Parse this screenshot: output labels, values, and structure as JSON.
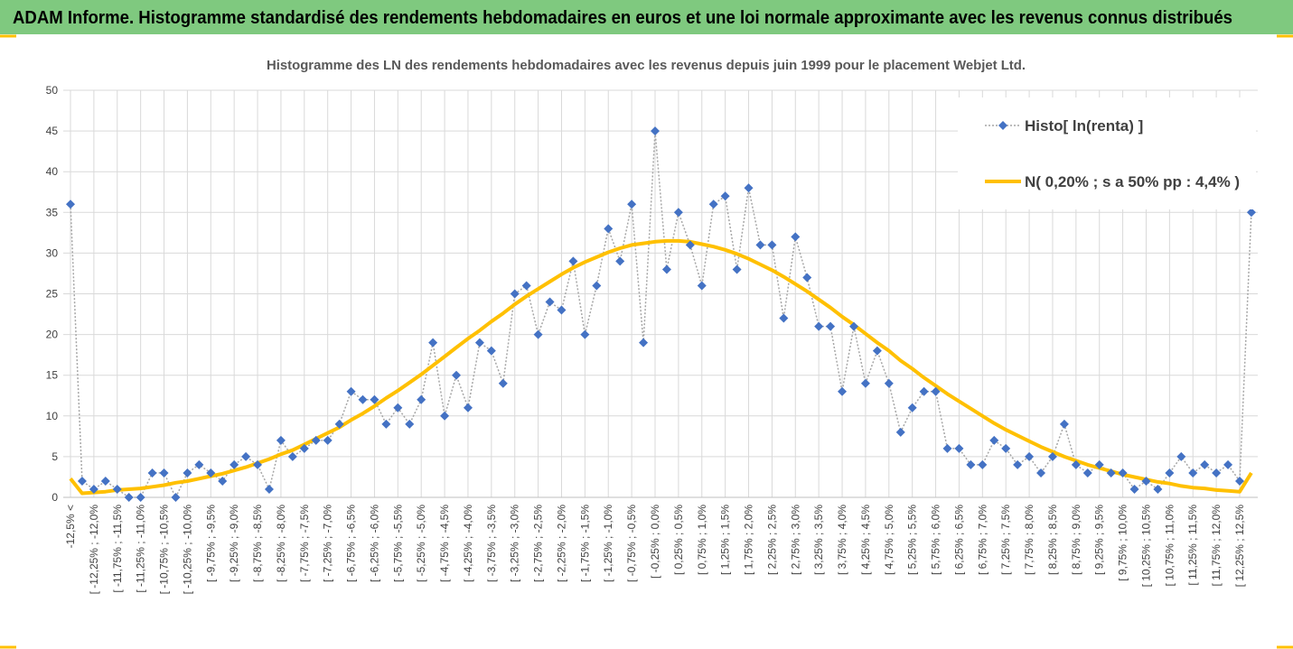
{
  "header": {
    "title": "ADAM Informe. Histogramme standardisé des rendements hebdomadaires en euros et une loi normale approximante avec les revenus connus distribués"
  },
  "chart_data": {
    "type": "line",
    "title": "Histogramme  des LN des rendements hebdomadaires avec les revenus depuis juin 1999 pour le placement Webjet Ltd.",
    "categories": [
      "-12,5% <",
      null,
      "[ -12,25% ; -12,0%",
      null,
      "[ -11,75% ; -11,5%",
      null,
      "[ -11,25% ; -11,0%",
      null,
      "[ -10,75% ; -10,5%",
      null,
      "[ -10,25% ; -10,0%",
      null,
      "[ -9,75% ; -9,5%",
      null,
      "[ -9,25% ; -9,0%",
      null,
      "[ -8,75% ; -8,5%",
      null,
      "[ -8,25% ; -8,0%",
      null,
      "[ -7,75% ; -7,5%",
      null,
      "[ -7,25% ; -7,0%",
      null,
      "[ -6,75% ; -6,5%",
      null,
      "[ -6,25% ; -6,0%",
      null,
      "[ -5,75% ; -5,5%",
      null,
      "[ -5,25% ; -5,0%",
      null,
      "[ -4,75% ; -4,5%",
      null,
      "[ -4,25% ; -4,0%",
      null,
      "[ -3,75% ; -3,5%",
      null,
      "[ -3,25% ; -3,0%",
      null,
      "[ -2,75% ; -2,5%",
      null,
      "[ -2,25% ; -2,0%",
      null,
      "[ -1,75% ; -1,5%",
      null,
      "[ -1,25% ; -1,0%",
      null,
      "[ -0,75% ; -0,5%",
      null,
      "[ -0,25% ; 0,0%",
      null,
      "[ 0,25% ; 0,5%",
      null,
      "[ 0,75% ; 1,0%",
      null,
      "[ 1,25% ; 1,5%",
      null,
      "[ 1,75% ; 2,0%",
      null,
      "[ 2,25% ; 2,5%",
      null,
      "[ 2,75% ; 3,0%",
      null,
      "[ 3,25% ; 3,5%",
      null,
      "[ 3,75% ; 4,0%",
      null,
      "[ 4,25% ; 4,5%",
      null,
      "[ 4,75% ; 5,0%",
      null,
      "[ 5,25% ; 5,5%",
      null,
      "[ 5,75% ; 6,0%",
      null,
      "[ 6,25% ; 6,5%",
      null,
      "[ 6,75% ; 7,0%",
      null,
      "[ 7,25% ; 7,5%",
      null,
      "[ 7,75% ; 8,0%",
      null,
      "[ 8,25% ; 8,5%",
      null,
      "[ 8,75% ; 9,0%",
      null,
      "[ 9,25% ; 9,5%",
      null,
      "[ 9,75% ; 10,0%",
      null,
      "[ 10,25% ; 10,5%",
      null,
      "[ 10,75% ; 11,0%",
      null,
      "[ 11,25% ; 11,5%",
      null,
      "[ 11,75% ; 12,0%",
      null,
      "[ 12,25% ; 12,5%",
      null
    ],
    "series": [
      {
        "name": "Histo[ ln(renta) ]",
        "color": "#4472c4",
        "line_color": "#a6a6a6",
        "marker": "diamond",
        "values": [
          36,
          2,
          1,
          2,
          1,
          0,
          0,
          3,
          3,
          0,
          3,
          4,
          3,
          2,
          4,
          5,
          4,
          1,
          7,
          5,
          6,
          7,
          7,
          9,
          13,
          12,
          12,
          9,
          11,
          9,
          12,
          19,
          10,
          15,
          11,
          19,
          18,
          14,
          25,
          26,
          20,
          24,
          23,
          29,
          20,
          26,
          33,
          29,
          36,
          19,
          45,
          28,
          35,
          31,
          26,
          36,
          37,
          28,
          38,
          31,
          31,
          22,
          32,
          27,
          21,
          21,
          13,
          21,
          14,
          18,
          14,
          8,
          11,
          13,
          13,
          6,
          6,
          4,
          4,
          7,
          6,
          4,
          5,
          3,
          5,
          9,
          4,
          3,
          4,
          3,
          3,
          1,
          2,
          1,
          3,
          5,
          3,
          4,
          3,
          4,
          2,
          35
        ]
      },
      {
        "name": "N( 0,20% ; s a 50% pp : 4,4% )",
        "color": "#ffc000",
        "values": [
          2.3,
          0.5,
          0.6,
          0.7,
          0.9,
          1.0,
          1.1,
          1.3,
          1.5,
          1.8,
          2.0,
          2.3,
          2.6,
          2.9,
          3.3,
          3.7,
          4.2,
          4.7,
          5.3,
          5.8,
          6.5,
          7.2,
          7.9,
          8.6,
          9.5,
          10.3,
          11.2,
          12.2,
          13.1,
          14.1,
          15.1,
          16.2,
          17.3,
          18.4,
          19.5,
          20.5,
          21.6,
          22.6,
          23.7,
          24.7,
          25.6,
          26.5,
          27.4,
          28.2,
          28.9,
          29.5,
          30.1,
          30.6,
          31.0,
          31.2,
          31.4,
          31.5,
          31.5,
          31.4,
          31.1,
          30.8,
          30.4,
          29.9,
          29.3,
          28.6,
          27.9,
          27.1,
          26.2,
          25.3,
          24.3,
          23.3,
          22.2,
          21.2,
          20.1,
          19.0,
          18.0,
          16.8,
          15.8,
          14.7,
          13.7,
          12.7,
          11.8,
          10.9,
          10.0,
          9.1,
          8.3,
          7.6,
          6.9,
          6.2,
          5.6,
          5.0,
          4.5,
          4.0,
          3.6,
          3.2,
          2.8,
          2.5,
          2.2,
          1.9,
          1.7,
          1.4,
          1.2,
          1.1,
          0.9,
          0.8,
          0.7,
          3.0
        ]
      }
    ],
    "ylim": [
      0,
      50
    ],
    "yticks": [
      0,
      5,
      10,
      15,
      20,
      25,
      30,
      35,
      40,
      45,
      50
    ],
    "grid": true,
    "legend": "upper right"
  }
}
